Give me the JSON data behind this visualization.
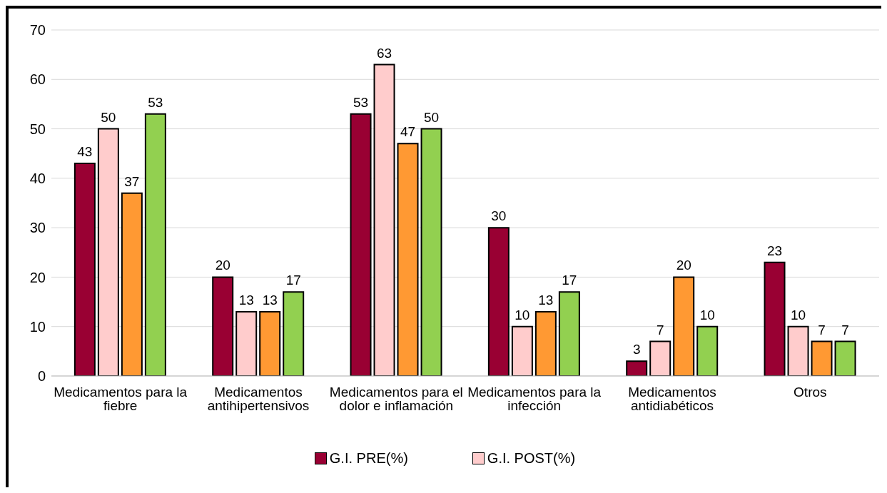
{
  "chart_data": {
    "type": "bar",
    "categories": [
      "Medicamentos para la fiebre",
      "Medicamentos antihipertensivos",
      "Medicamentos para el dolor e inflamación",
      "Medicamentos para la infección",
      "Medicamentos antidiabéticos",
      "Otros"
    ],
    "series": [
      {
        "name": "G.I. PRE(%)",
        "color": "#990033",
        "values": [
          43,
          20,
          53,
          30,
          3,
          23
        ]
      },
      {
        "name": "G.I. POST(%)",
        "color": "#ffcccc",
        "values": [
          50,
          13,
          63,
          10,
          7,
          10
        ]
      },
      {
        "color": "#ff9933",
        "values": [
          37,
          13,
          47,
          13,
          20,
          7
        ]
      },
      {
        "color": "#92d050",
        "values": [
          53,
          17,
          50,
          17,
          10,
          7
        ]
      }
    ],
    "ylim": [
      0,
      70
    ],
    "yticks": [
      0,
      10,
      20,
      30,
      40,
      50,
      60,
      70
    ],
    "grid": "y",
    "legend": "bottom",
    "data_labels": true
  }
}
